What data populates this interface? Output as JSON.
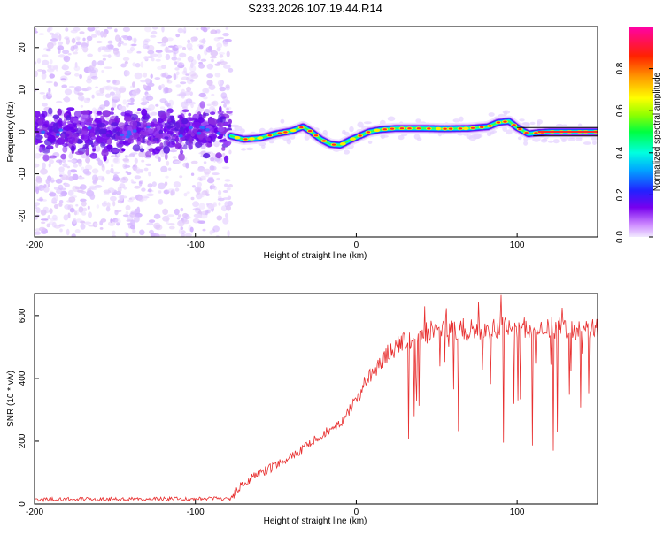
{
  "title": "S233.2026.107.19.44.R14",
  "colors": {
    "snr_line": "#e83030",
    "axis": "#000000"
  },
  "chart_data": [
    {
      "type": "heatmap",
      "xlabel": "Height of straight line (km)",
      "ylabel": "Frequency (Hz)",
      "xlim": [
        -200,
        150
      ],
      "ylim": [
        -25,
        25
      ],
      "xticks": [
        -200,
        -100,
        0,
        100
      ],
      "xtick_labels": [
        "-200",
        "-100",
        "0",
        "100"
      ],
      "yticks": [
        -20,
        -10,
        0,
        10,
        20
      ],
      "ytick_labels": [
        "-20",
        "-10",
        "0",
        "10",
        "20"
      ],
      "colorbar": {
        "label": "Normalized spectral amplitude",
        "range": [
          0,
          1
        ],
        "ticks": [
          0.0,
          0.2,
          0.4,
          0.6,
          0.8
        ],
        "tick_labels": [
          "0.0",
          "0.2",
          "0.4",
          "0.6",
          "0.8"
        ],
        "colormap": "rainbow (violet → blue → cyan → green → yellow → red → magenta)"
      },
      "ridge": {
        "x": [
          -78,
          -70,
          -60,
          -50,
          -40,
          -33,
          -28,
          -22,
          -16,
          -10,
          -4,
          2,
          8,
          15,
          25,
          40,
          55,
          70,
          82,
          88,
          95,
          100,
          107,
          113,
          120,
          150
        ],
        "y": [
          -1.0,
          -1.8,
          -1.5,
          -0.5,
          0.2,
          1.2,
          0.0,
          -1.8,
          -3.0,
          -3.2,
          -2.0,
          -1.0,
          0.0,
          0.5,
          0.8,
          0.8,
          0.7,
          0.8,
          1.2,
          2.2,
          2.5,
          1.0,
          -0.5,
          -0.2,
          0.0,
          0.0
        ]
      },
      "noise_region": {
        "xmin": -200,
        "xmax": -78,
        "ymin": -25,
        "ymax": 25
      }
    },
    {
      "type": "line",
      "xlabel": "Height of straight line (km)",
      "ylabel": "SNR (10 * v/v)",
      "xlim": [
        -200,
        150
      ],
      "ylim": [
        0,
        670
      ],
      "xticks": [
        -200,
        -100,
        0,
        100
      ],
      "xtick_labels": [
        "-200",
        "-100",
        "0",
        "100"
      ],
      "yticks": [
        0,
        200,
        400,
        600
      ],
      "ytick_labels": [
        "0",
        "200",
        "400",
        "600"
      ],
      "series": [
        {
          "color": "#e83030",
          "x": [
            -200,
            -150,
            -100,
            -78,
            -72,
            -65,
            -55,
            -45,
            -35,
            -25,
            -15,
            -8,
            0,
            5,
            10,
            15,
            20,
            30,
            40,
            50,
            60,
            70,
            80,
            90,
            100,
            110,
            120,
            130,
            140,
            150
          ],
          "y": [
            15,
            16,
            17,
            17,
            60,
            85,
            110,
            140,
            170,
            210,
            240,
            270,
            330,
            380,
            420,
            450,
            480,
            520,
            540,
            555,
            560,
            555,
            550,
            565,
            560,
            555,
            560,
            560,
            555,
            560
          ]
        }
      ]
    }
  ]
}
